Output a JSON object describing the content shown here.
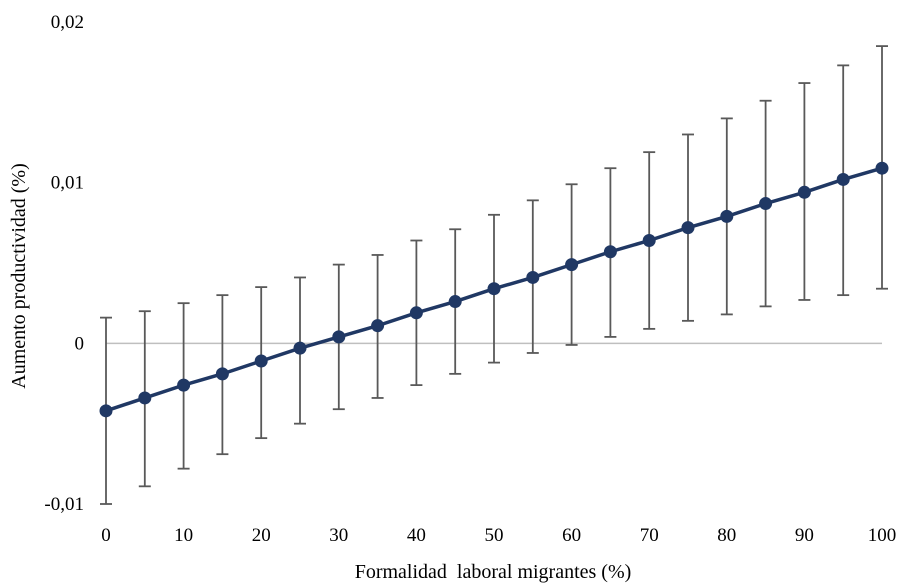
{
  "chart_data": {
    "type": "line",
    "title": "",
    "xlabel": "Formalidad  laboral migrantes (%)",
    "ylabel": "Aumento productividad (%)",
    "xlim": [
      0,
      100
    ],
    "ylim": [
      -0.01,
      0.02
    ],
    "x_ticks": [
      "0",
      "10",
      "20",
      "30",
      "40",
      "50",
      "60",
      "70",
      "80",
      "90",
      "100"
    ],
    "y_ticks": [
      "-0,01",
      "0",
      "0,01",
      "0,02"
    ],
    "grid": false,
    "zero_line": true,
    "legend": "none",
    "series": [
      {
        "x": [
          0,
          5,
          10,
          15,
          20,
          25,
          30,
          35,
          40,
          45,
          50,
          55,
          60,
          65,
          70,
          75,
          80,
          85,
          90,
          95,
          100
        ],
        "y": [
          -0.0042,
          -0.0034,
          -0.0026,
          -0.0019,
          -0.0011,
          -0.0003,
          0.0004,
          0.0011,
          0.0019,
          0.0026,
          0.0034,
          0.0041,
          0.0049,
          0.0057,
          0.0064,
          0.0072,
          0.0079,
          0.0087,
          0.0094,
          0.0102,
          0.0109
        ],
        "error_low": [
          -0.01,
          -0.0089,
          -0.0078,
          -0.0069,
          -0.0059,
          -0.005,
          -0.0041,
          -0.0034,
          -0.0026,
          -0.0019,
          -0.0012,
          -0.0006,
          -0.0001,
          0.0004,
          0.0009,
          0.0014,
          0.0018,
          0.0023,
          0.0027,
          0.003,
          0.0034
        ],
        "error_high": [
          0.0016,
          0.002,
          0.0025,
          0.003,
          0.0035,
          0.0041,
          0.0049,
          0.0055,
          0.0064,
          0.0071,
          0.008,
          0.0089,
          0.0099,
          0.0109,
          0.0119,
          0.013,
          0.014,
          0.0151,
          0.0162,
          0.0173,
          0.0185
        ]
      }
    ],
    "colors": {
      "line": "#203864",
      "marker": "#203864",
      "error_bar": "#595959",
      "zero_line": "#bfbfbf"
    }
  }
}
